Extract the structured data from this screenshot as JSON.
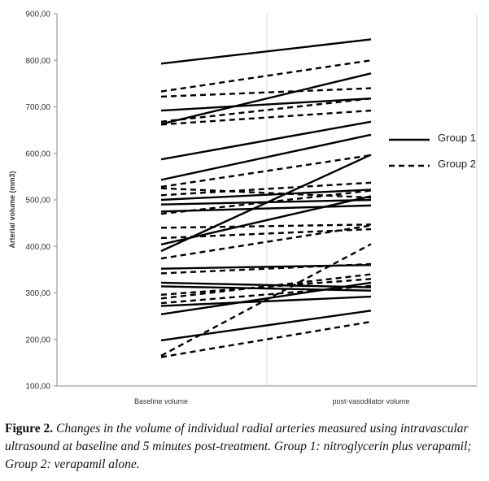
{
  "chart_data": {
    "type": "line",
    "title": "",
    "ylabel": "Arterial volume (mm3)",
    "xlabel": "",
    "categories": [
      "Baseline volume",
      "post-vasodilator volume"
    ],
    "ylim": [
      100,
      900
    ],
    "yticks": [
      "100,00",
      "200,00",
      "300,00",
      "400,00",
      "500,00",
      "600,00",
      "700,00",
      "800,00",
      "900,00"
    ],
    "grid": "vertical category separators only",
    "legend_position": "right",
    "legend": [
      {
        "name": "Group 1",
        "style": "solid"
      },
      {
        "name": "Group 2",
        "style": "dashed"
      }
    ],
    "series": [
      {
        "group": "Group 1",
        "values": [
          793,
          845
        ]
      },
      {
        "group": "Group 1",
        "values": [
          663,
          772
        ]
      },
      {
        "group": "Group 1",
        "values": [
          692,
          718
        ]
      },
      {
        "group": "Group 1",
        "values": [
          587,
          668
        ]
      },
      {
        "group": "Group 1",
        "values": [
          543,
          640
        ]
      },
      {
        "group": "Group 1",
        "values": [
          500,
          522
        ]
      },
      {
        "group": "Group 1",
        "values": [
          490,
          500
        ]
      },
      {
        "group": "Group 1",
        "values": [
          475,
          488
        ]
      },
      {
        "group": "Group 1",
        "values": [
          404,
          508
        ]
      },
      {
        "group": "Group 1",
        "values": [
          390,
          597
        ]
      },
      {
        "group": "Group 1",
        "values": [
          352,
          360
        ]
      },
      {
        "group": "Group 1",
        "values": [
          322,
          312
        ]
      },
      {
        "group": "Group 1",
        "values": [
          314,
          305
        ]
      },
      {
        "group": "Group 1",
        "values": [
          272,
          292
        ]
      },
      {
        "group": "Group 1",
        "values": [
          254,
          322
        ]
      },
      {
        "group": "Group 1",
        "values": [
          198,
          262
        ]
      },
      {
        "group": "Group 2",
        "values": [
          733,
          800
        ]
      },
      {
        "group": "Group 2",
        "values": [
          722,
          740
        ]
      },
      {
        "group": "Group 2",
        "values": [
          668,
          718
        ]
      },
      {
        "group": "Group 2",
        "values": [
          662,
          692
        ]
      },
      {
        "group": "Group 2",
        "values": [
          528,
          596
        ]
      },
      {
        "group": "Group 2",
        "values": [
          525,
          505
        ]
      },
      {
        "group": "Group 2",
        "values": [
          510,
          537
        ]
      },
      {
        "group": "Group 2",
        "values": [
          470,
          520
        ]
      },
      {
        "group": "Group 2",
        "values": [
          440,
          447
        ]
      },
      {
        "group": "Group 2",
        "values": [
          418,
          437
        ]
      },
      {
        "group": "Group 2",
        "values": [
          374,
          445
        ]
      },
      {
        "group": "Group 2",
        "values": [
          342,
          362
        ]
      },
      {
        "group": "Group 2",
        "values": [
          296,
          330
        ]
      },
      {
        "group": "Group 2",
        "values": [
          288,
          340
        ]
      },
      {
        "group": "Group 2",
        "values": [
          278,
          315
        ]
      },
      {
        "group": "Group 2",
        "values": [
          165,
          405
        ]
      },
      {
        "group": "Group 2",
        "values": [
          162,
          238
        ]
      }
    ]
  },
  "caption": {
    "label": "Figure 2.",
    "text": "Changes in the volume of individual radial arteries measured using intravascular ultrasound at baseline and 5 minutes post-treatment. Group 1: nitroglycerin plus verapamil; Group 2: verapamil alone."
  }
}
